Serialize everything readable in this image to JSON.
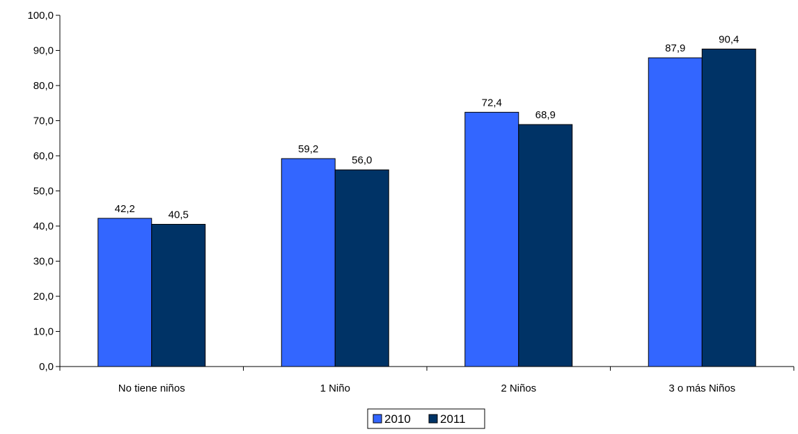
{
  "chart_data": {
    "type": "bar",
    "title": "",
    "xlabel": "",
    "ylabel": "",
    "categories": [
      "No tiene niños",
      "1 Niño",
      "2 Niños",
      "3 o más Niños"
    ],
    "series": [
      {
        "name": "2010",
        "color": "#3366FF",
        "values": [
          42.2,
          59.2,
          72.4,
          87.9
        ],
        "labels": [
          "42,2",
          "59,2",
          "72,4",
          "87,9"
        ]
      },
      {
        "name": "2011",
        "color": "#003366",
        "values": [
          40.5,
          56.0,
          68.9,
          90.4
        ],
        "labels": [
          "40,5",
          "56,0",
          "68,9",
          "90,4"
        ]
      }
    ],
    "ylim": [
      0,
      100
    ],
    "y_ticks": [
      0,
      10,
      20,
      30,
      40,
      50,
      60,
      70,
      80,
      90,
      100
    ],
    "y_tick_labels": [
      "0,0",
      "10,0",
      "20,0",
      "30,0",
      "40,0",
      "50,0",
      "60,0",
      "70,0",
      "80,0",
      "90,0",
      "100,0"
    ],
    "grid": false,
    "legend_position": "bottom-center"
  }
}
